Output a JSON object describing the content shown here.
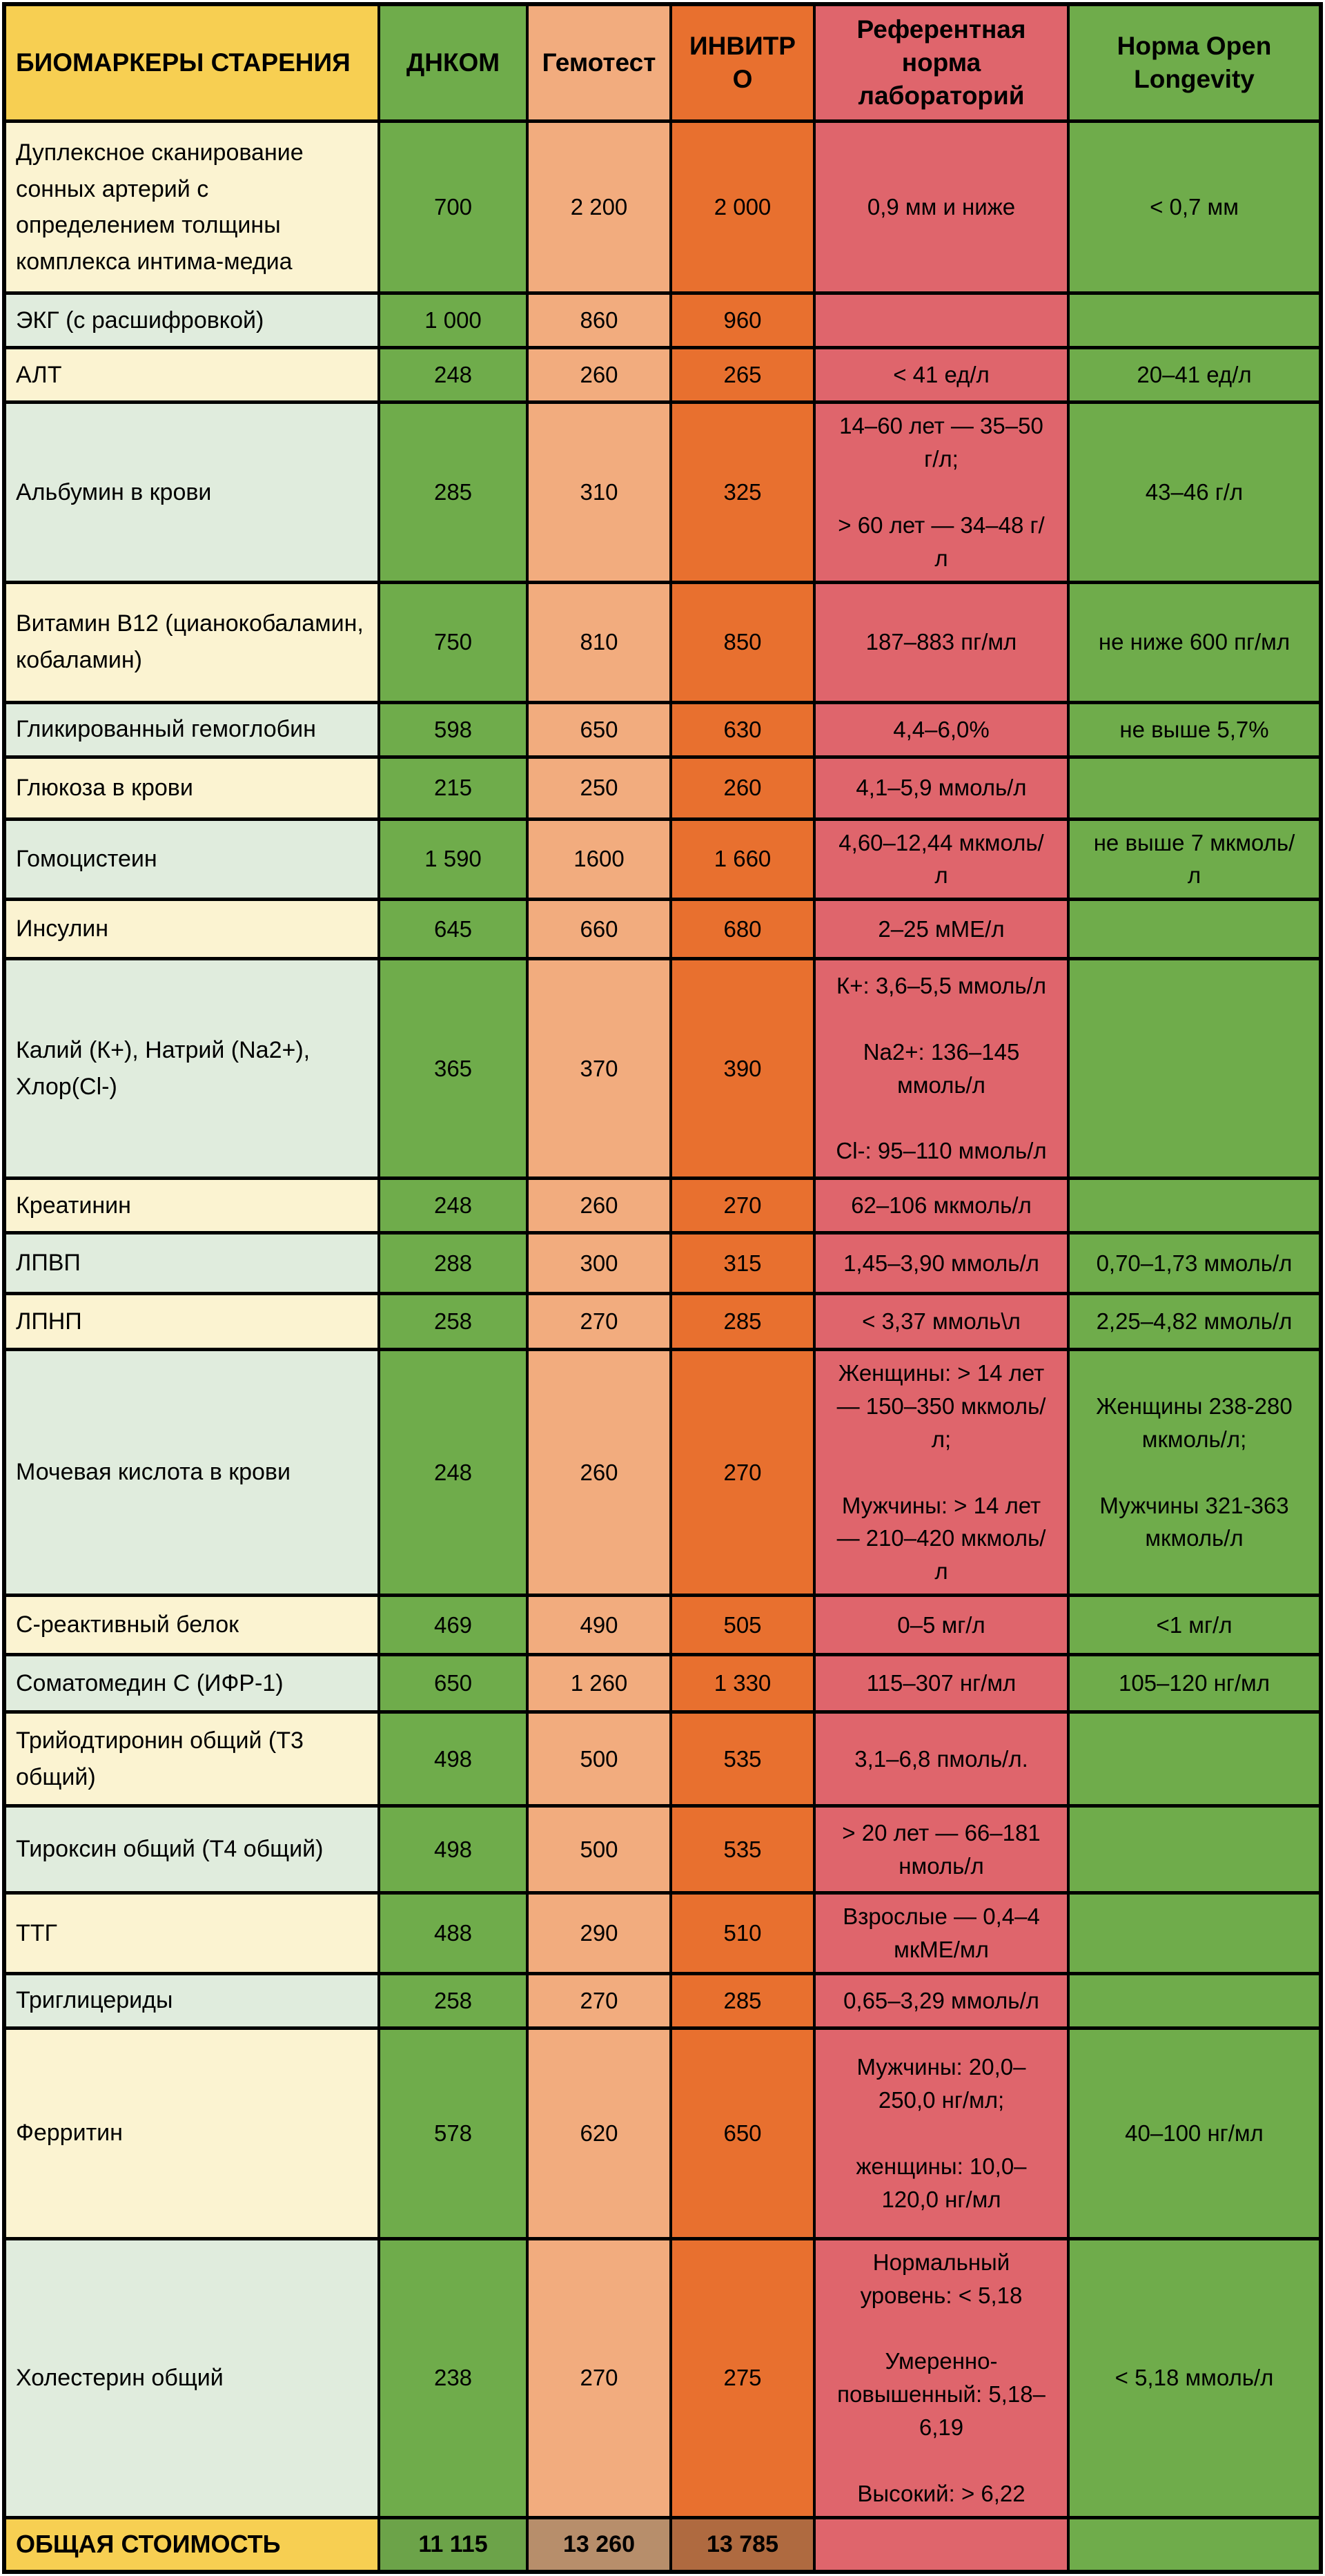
{
  "columns": [
    "БИОМАРКЕРЫ СТАРЕНИЯ",
    "ДНКОМ",
    "Гемотест",
    "ИНВИТРО",
    "Референтная норма лабораторий",
    "Норма Open Longevity"
  ],
  "rows": [
    {
      "name": "Дуплексное сканирование сонных артерий с определением толщины комплекса интима-медиа",
      "tint": "cream",
      "values": [
        "700",
        "2 200",
        "2 000",
        "0,9 мм и ниже",
        "< 0,7 мм"
      ]
    },
    {
      "name": "ЭКГ (с расшифровкой)",
      "tint": "green",
      "values": [
        "1 000",
        "860",
        "960",
        "",
        ""
      ]
    },
    {
      "name": "АЛТ",
      "tint": "cream",
      "values": [
        "248",
        "260",
        "265",
        "< 41 ед/л",
        "20–41 ед/л"
      ]
    },
    {
      "name": "Альбумин в крови",
      "tint": "green",
      "values": [
        "285",
        "310",
        "325",
        "14–60 лет — 35–50 г/л;\n\n> 60 лет — 34–48 г/л",
        "43–46 г/л"
      ]
    },
    {
      "name": "Витамин В12 (цианокобаламин, кобаламин)",
      "tint": "cream",
      "values": [
        "750",
        "810",
        "850",
        "187–883 пг/мл",
        "не ниже 600 пг/мл"
      ]
    },
    {
      "name": "Гликированный гемоглобин",
      "tint": "green",
      "values": [
        "598",
        "650",
        "630",
        "4,4–6,0%",
        "не выше 5,7%"
      ]
    },
    {
      "name": "Глюкоза в крови",
      "tint": "cream",
      "values": [
        "215",
        "250",
        "260",
        "4,1–5,9 ммоль/л",
        ""
      ]
    },
    {
      "name": "Гомоцистеин",
      "tint": "green",
      "values": [
        "1 590",
        "1600",
        "1 660",
        "4,60–12,44 мкмоль/л",
        "не выше 7 мкмоль/л"
      ]
    },
    {
      "name": "Инсулин",
      "tint": "cream",
      "values": [
        "645",
        "660",
        "680",
        "2–25 мМЕ/л",
        ""
      ]
    },
    {
      "name": "Калий (К+), Натрий (Na2+), Хлор(Cl-)",
      "tint": "green",
      "values": [
        "365",
        "370",
        "390",
        "К+: 3,6–5,5 ммоль/л\n\nNa2+: 136–145 ммоль/л\n\nCl-: 95–110 ммоль/л",
        ""
      ]
    },
    {
      "name": "Креатинин",
      "tint": "cream",
      "values": [
        "248",
        "260",
        "270",
        "62–106 мкмоль/л",
        ""
      ]
    },
    {
      "name": "ЛПВП",
      "tint": "green",
      "values": [
        "288",
        "300",
        "315",
        "1,45–3,90 ммоль/л",
        "0,70–1,73 ммоль/л"
      ]
    },
    {
      "name": "ЛПНП",
      "tint": "cream",
      "values": [
        "258",
        "270",
        "285",
        "< 3,37 ммоль\\л",
        "2,25–4,82 ммоль/л"
      ]
    },
    {
      "name": "Мочевая кислота в крови",
      "tint": "green",
      "values": [
        "248",
        "260",
        "270",
        "Женщины: > 14 лет — 150–350 мкмоль/л;\n\nМужчины: > 14 лет — 210–420 мкмоль/л",
        "Женщины 238-280 мкмоль/л;\n\nМужчины 321-363 мкмоль/л"
      ]
    },
    {
      "name": "С-реактивный белок",
      "tint": "cream",
      "values": [
        "469",
        "490",
        "505",
        "0–5 мг/л",
        "<1 мг/л"
      ]
    },
    {
      "name": "Соматомедин С (ИФР-1)",
      "tint": "green",
      "values": [
        "650",
        "1 260",
        "1 330",
        "115–307 нг/мл",
        "105–120 нг/мл"
      ]
    },
    {
      "name": "Трийодтиронин общий (Т3 общий)",
      "tint": "cream",
      "values": [
        "498",
        "500",
        "535",
        "3,1–6,8 пмоль/л.",
        ""
      ]
    },
    {
      "name": "Тироксин общий (Т4 общий)",
      "tint": "green",
      "values": [
        "498",
        "500",
        "535",
        "> 20 лет — 66–181 нмоль/л",
        ""
      ]
    },
    {
      "name": "ТТГ",
      "tint": "cream",
      "values": [
        "488",
        "290",
        "510",
        "Взрослые — 0,4–4 мкМЕ/мл",
        ""
      ]
    },
    {
      "name": "Триглицериды",
      "tint": "green",
      "values": [
        "258",
        "270",
        "285",
        "0,65–3,29 ммоль/л",
        ""
      ]
    },
    {
      "name": "Ферритин",
      "tint": "cream",
      "values": [
        "578",
        "620",
        "650",
        "Мужчины: 20,0–250,0 нг/мл;\n\nженщины: 10,0–120,0 нг/мл",
        "40–100 нг/мл"
      ]
    },
    {
      "name": "Холестерин общий",
      "tint": "green",
      "values": [
        "238",
        "270",
        "275",
        "Нормальный уровень: < 5,18\n\nУмеренно-повышенный: 5,18–6,19\n\nВысокий: > 6,22",
        "< 5,18 ммоль/л"
      ]
    }
  ],
  "totals": {
    "label": "ОБЩАЯ СТОИМОСТЬ",
    "values": [
      "11 115",
      "13 260",
      "13 785",
      "",
      ""
    ]
  },
  "colors": {
    "yellow": "#F7CF52",
    "col_green": "#6FAC4B",
    "col_peach": "#F2AC7E",
    "col_orange": "#E8702F",
    "col_red": "#DF656C",
    "row_cream": "#FBF3D1",
    "row_green": "#E0ECDD",
    "totals_green": "#6CA349",
    "totals_tan": "#B78E6B",
    "totals_brown": "#AF6A40",
    "border": "#000000"
  }
}
